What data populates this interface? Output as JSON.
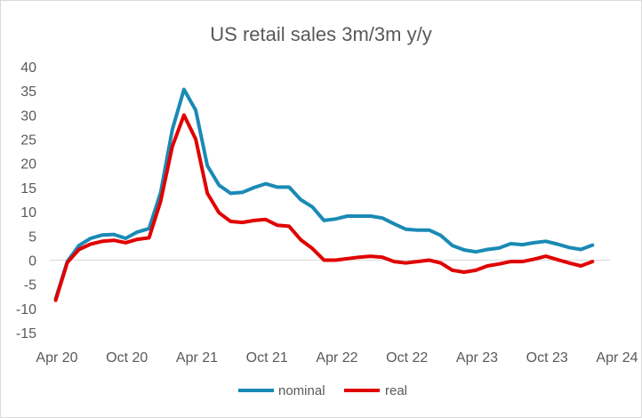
{
  "chart_data": {
    "type": "line",
    "title": "US retail sales 3m/3m y/y",
    "xlabel": "",
    "ylabel": "",
    "ylim": [
      -15,
      40
    ],
    "yticks": [
      "40",
      "35",
      "30",
      "25",
      "20",
      "15",
      "10",
      "5",
      "0",
      "-5",
      "-10",
      "-15"
    ],
    "xticks": [
      "Apr 20",
      "Oct 20",
      "Apr 21",
      "Oct 21",
      "Apr 22",
      "Oct 22",
      "Apr 23",
      "Oct 23",
      "Apr 24"
    ],
    "x": [
      "May 20",
      "Jun 20",
      "Jul 20",
      "Aug 20",
      "Sep 20",
      "Oct 20",
      "Nov 20",
      "Dec 20",
      "Jan 21",
      "Feb 21",
      "Mar 21",
      "Apr 21",
      "May 21",
      "Jun 21",
      "Jul 21",
      "Aug 21",
      "Sep 21",
      "Oct 21",
      "Nov 21",
      "Dec 21",
      "Jan 22",
      "Feb 22",
      "Mar 22",
      "Apr 22",
      "May 22",
      "Jun 22",
      "Jul 22",
      "Aug 22",
      "Sep 22",
      "Oct 22",
      "Nov 22",
      "Dec 22",
      "Jan 23",
      "Feb 23",
      "Mar 23",
      "Apr 23",
      "May 23",
      "Jun 23",
      "Jul 23",
      "Aug 23",
      "Sep 23",
      "Oct 23",
      "Nov 23",
      "Dec 23",
      "Jan 24",
      "Feb 24",
      "Mar 24",
      "Apr 24"
    ],
    "series": [
      {
        "name": "nominal",
        "color": "#1a8ab5",
        "values": [
          -8,
          -0.3,
          3,
          4.5,
          5.2,
          5.3,
          4.5,
          5.8,
          6.5,
          14,
          27,
          35.3,
          31,
          19.5,
          15.5,
          13.8,
          14,
          15,
          15.8,
          15.1,
          15.1,
          12.5,
          11,
          8.2,
          8.5,
          9.1,
          9.1,
          9.1,
          8.7,
          7.5,
          6.4,
          6.2,
          6.2,
          5.1,
          3,
          2.1,
          1.7,
          2.2,
          2.5,
          3.4,
          3.2,
          3.6,
          3.9,
          3.3,
          2.6,
          2.2,
          3.1,
          null
        ]
      },
      {
        "name": "real",
        "color": "#e00000",
        "values": [
          -8.3,
          -0.5,
          2.2,
          3.3,
          3.9,
          4.1,
          3.6,
          4.3,
          4.6,
          12.2,
          23.5,
          30,
          25,
          13.8,
          9.8,
          8,
          7.8,
          8.2,
          8.4,
          7.2,
          7,
          4.2,
          2.4,
          0,
          0,
          0.3,
          0.6,
          0.8,
          0.6,
          -0.3,
          -0.6,
          -0.3,
          0,
          -0.6,
          -2.1,
          -2.5,
          -2.1,
          -1.2,
          -0.8,
          -0.3,
          -0.3,
          0.2,
          0.8,
          0.1,
          -0.6,
          -1.2,
          -0.3,
          null
        ]
      }
    ],
    "grid": false,
    "legend": "bottom"
  }
}
